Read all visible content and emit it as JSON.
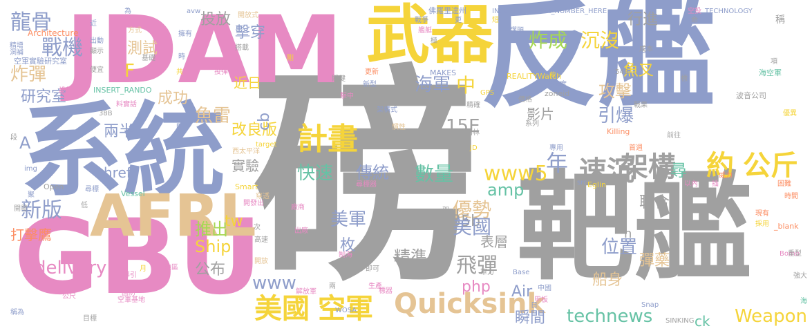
{
  "words": [
    {
      "text": "磅",
      "color": "#a0a0a0"
    },
    {
      "text": "反艦",
      "color": "#8e9dca"
    },
    {
      "text": "靶艦",
      "color": "#a0a0a0"
    },
    {
      "text": "系統",
      "color": "#8e9dca"
    },
    {
      "text": "JDAM",
      "color": "#e78ac3"
    },
    {
      "text": "GBU",
      "color": "#e78ac3"
    },
    {
      "text": "武器",
      "color": "#f5d43a"
    },
    {
      "text": "AFRL",
      "color": "#e5c494"
    },
    {
      "text": "Quicksink",
      "color": "#e5c494"
    },
    {
      "text": "美國",
      "color": "#f5d43a"
    },
    {
      "text": "空軍",
      "color": "#f5d43a"
    },
    {
      "text": "約",
      "color": "#f5d43a"
    },
    {
      "text": "公斤",
      "color": "#f5d43a"
    },
    {
      "text": "計畫",
      "color": "#f5d43a"
    },
    {
      "text": "架構",
      "color": "#a0a0a0"
    },
    {
      "text": "速沉",
      "color": "#a0a0a0"
    },
    {
      "text": "龍骨",
      "color": "#8e9dca"
    },
    {
      "text": "戰機",
      "color": "#8e9dca"
    },
    {
      "text": "炸彈",
      "color": "#e5c494"
    },
    {
      "text": "研究室",
      "color": "#8e9dca"
    },
    {
      "text": "兩半",
      "color": "#8e9dca"
    },
    {
      "text": "炸成",
      "color": "#a6d854"
    },
    {
      "text": "沉沒",
      "color": "#f5d43a"
    },
    {
      "text": "行進",
      "color": "#a0a0a0"
    },
    {
      "text": "擊穿",
      "color": "#8e9dca"
    },
    {
      "text": "投放",
      "color": "#a0a0a0"
    },
    {
      "text": "測試",
      "color": "#e5c494"
    },
    {
      "text": "近日",
      "color": "#f5d43a"
    },
    {
      "text": "成功",
      "color": "#e5c494"
    },
    {
      "text": "魚雷",
      "color": "#e5c494"
    },
    {
      "text": "魚叉",
      "color": "#f5d43a"
    },
    {
      "text": "攻擊",
      "color": "#e5c494"
    },
    {
      "text": "海軍",
      "color": "#8e9dca"
    },
    {
      "text": "中",
      "color": "#f5d43a"
    },
    {
      "text": "引爆",
      "color": "#8e9dca"
    },
    {
      "text": "影片",
      "color": "#a0a0a0"
    },
    {
      "text": "15E",
      "color": "#a0a0a0"
    },
    {
      "text": "改良版",
      "color": "#f5d43a"
    },
    {
      "text": "快速",
      "color": "#66c2a5"
    },
    {
      "text": "實驗",
      "color": "#a0a0a0"
    },
    {
      "text": "傳統",
      "color": "#8e9dca"
    },
    {
      "text": "數量",
      "color": "#66c2a5"
    },
    {
      "text": "年",
      "color": "#8e9dca"
    },
    {
      "text": "尋",
      "color": "#66c2a5"
    },
    {
      "text": "新版",
      "color": "#8e9dca"
    },
    {
      "text": "打擊鷹",
      "color": "#fc8d62"
    },
    {
      "text": "推出",
      "color": "#a6d854"
    },
    {
      "text": "Ship",
      "color": "#f5d43a"
    },
    {
      "text": "公布",
      "color": "#a0a0a0"
    },
    {
      "text": "delivery",
      "color": "#e78ac3"
    },
    {
      "text": "www",
      "color": "#8e9dca"
    },
    {
      "text": "www5",
      "color": "#f5d43a"
    },
    {
      "text": "amp",
      "color": "#66c2a5"
    },
    {
      "text": "優勢",
      "color": "#e5c494"
    },
    {
      "text": "美軍",
      "color": "#8e9dca"
    },
    {
      "text": "a4b3f35b",
      "color": "#a0a0a0"
    },
    {
      "text": "美國",
      "color": "#8e9dca"
    },
    {
      "text": "精準",
      "color": "#a0a0a0"
    },
    {
      "text": "飛彈",
      "color": "#a0a0a0"
    },
    {
      "text": "位置",
      "color": "#8e9dca"
    },
    {
      "text": "聯合",
      "color": "#a0a0a0"
    },
    {
      "text": "彈藥",
      "color": "#e5c494"
    },
    {
      "text": "船身",
      "color": "#e5c494"
    },
    {
      "text": "瞬間",
      "color": "#8e9dca"
    },
    {
      "text": "technews",
      "color": "#66c2a5"
    },
    {
      "text": "Weapon",
      "color": "#f5d43a"
    },
    {
      "text": "php",
      "color": "#e78ac3"
    },
    {
      "text": "Air",
      "color": "#8e9dca"
    },
    {
      "text": "表層",
      "color": "#a0a0a0"
    },
    {
      "text": "ck",
      "color": "#66c2a5"
    },
    {
      "text": "tw",
      "color": "#f5d43a"
    },
    {
      "text": "cb",
      "color": "#8e9dca"
    },
    {
      "text": "href",
      "color": "#8e9dca"
    },
    {
      "text": "A",
      "color": "#8e9dca"
    },
    {
      "text": "F",
      "color": "#f5d43a"
    },
    {
      "text": "n",
      "color": "#a0a0a0"
    },
    {
      "text": "枚",
      "color": "#8e9dca"
    },
    {
      "text": "Architecture",
      "color": "#fc8d62"
    },
    {
      "text": "空軍實驗研究室",
      "color": "#8e9dca"
    },
    {
      "text": "INSERT_RANDO",
      "color": "#66c2a5"
    },
    {
      "text": "INSERT_RANDOM_NUMBER_HERE",
      "color": "#8e9dca"
    },
    {
      "text": "TECHNOLOGY",
      "color": "#8e9dca"
    },
    {
      "text": "佛羅里達州",
      "color": "#8e9dca"
    },
    {
      "text": "REALITYWatch",
      "color": "#f5d43a"
    },
    {
      "text": "MAKES",
      "color": "#8e9dca"
    },
    {
      "text": "Force",
      "color": "#8e9dca"
    },
    {
      "text": "zoneid",
      "color": "#a0a0a0"
    },
    {
      "text": "波音公司",
      "color": "#a0a0a0"
    },
    {
      "text": "海空軍",
      "color": "#66c2a5"
    },
    {
      "text": "54B",
      "color": "#a0a0a0"
    },
    {
      "text": "Killing",
      "color": "#fc8d62"
    },
    {
      "text": "Eglin",
      "color": "#f5d43a"
    },
    {
      "text": "Systems",
      "color": "#a0a0a0"
    },
    {
      "text": "Vessel",
      "color": "#66c2a5"
    },
    {
      "text": "Smart",
      "color": "#f5d43a"
    },
    {
      "text": "Open",
      "color": "#a0a0a0"
    },
    {
      "text": "img",
      "color": "#8e9dca"
    },
    {
      "text": "target",
      "color": "#f5d43a"
    },
    {
      "text": "西太平洋",
      "color": "#e5c494"
    },
    {
      "text": "SINKING",
      "color": "#a0a0a0"
    },
    {
      "text": "Snap",
      "color": "#8e9dca"
    },
    {
      "text": "WOSA",
      "color": "#8e9dca"
    },
    {
      "text": "Bomb",
      "color": "#e78ac3"
    },
    {
      "text": "_blank",
      "color": "#fc8d62"
    },
    {
      "text": "GPS",
      "color": "#f5d43a"
    },
    {
      "text": "avw",
      "color": "#8e9dca"
    },
    {
      "text": "38B",
      "color": "#a0a0a0"
    },
    {
      "text": "JD",
      "color": "#f5d43a"
    },
    {
      "text": "src",
      "color": "#8e9dca"
    },
    {
      "text": "Base",
      "color": "#8e9dca"
    },
    {
      "text": "開放式",
      "color": "#e5c494"
    },
    {
      "text": "方式",
      "color": "#e5c494"
    },
    {
      "text": "出動",
      "color": "#8e9dca"
    },
    {
      "text": "顯示",
      "color": "#a0a0a0"
    },
    {
      "text": "擁有",
      "color": "#8e9dca"
    },
    {
      "text": "基礎",
      "color": "#a0a0a0"
    },
    {
      "text": "時",
      "color": "#8e9dca"
    },
    {
      "text": "搭載",
      "color": "#a0a0a0"
    },
    {
      "text": "剛",
      "color": "#f5d43a"
    },
    {
      "text": "艦艇",
      "color": "#e78ac3"
    },
    {
      "text": "戰爭",
      "color": "#8e9dca"
    },
    {
      "text": "極",
      "color": "#a0a0a0"
    },
    {
      "text": "更",
      "color": "#8e9dca"
    },
    {
      "text": "短",
      "color": "#f5d43a"
    },
    {
      "text": "空投",
      "color": "#e78ac3"
    },
    {
      "text": "命",
      "color": "#a0a0a0"
    },
    {
      "text": "稱",
      "color": "#a0a0a0"
    },
    {
      "text": "成本",
      "color": "#a0a0a0"
    },
    {
      "text": "彈頭",
      "color": "#8e9dca"
    },
    {
      "text": "投彈",
      "color": "#e78ac3"
    },
    {
      "text": "關鍵",
      "color": "#a0a0a0"
    },
    {
      "text": "更新",
      "color": "#fc8d62"
    },
    {
      "text": "新型",
      "color": "#8e9dca"
    },
    {
      "text": "擊中",
      "color": "#e78ac3"
    },
    {
      "text": "首",
      "color": "#a0a0a0"
    },
    {
      "text": "架構式",
      "color": "#8e9dca"
    },
    {
      "text": "精確度",
      "color": "#8e9dca"
    },
    {
      "text": "精確",
      "color": "#a0a0a0"
    },
    {
      "text": "價格",
      "color": "#a0a0a0"
    },
    {
      "text": "戰果",
      "color": "#a0a0a0"
    },
    {
      "text": "優異",
      "color": "#f5d43a"
    },
    {
      "text": "慣性",
      "color": "#e5c494"
    },
    {
      "text": "埃格林",
      "color": "#a0a0a0"
    },
    {
      "text": "專用",
      "color": "#8e9dca"
    },
    {
      "text": "首週",
      "color": "#fc8d62"
    },
    {
      "text": "前往",
      "color": "#a0a0a0"
    },
    {
      "text": "尋標器",
      "color": "#e78ac3"
    },
    {
      "text": "以內",
      "color": "#e78ac3"
    },
    {
      "text": "插",
      "color": "#e78ac3"
    },
    {
      "text": "威力",
      "color": "#fc8d62"
    },
    {
      "text": "困難",
      "color": "#fc8d62"
    },
    {
      "text": "時間",
      "color": "#fc8d62"
    },
    {
      "text": "現有",
      "color": "#fc8d62"
    },
    {
      "text": "採用",
      "color": "#f5d43a"
    },
    {
      "text": "重型",
      "color": "#a0a0a0"
    },
    {
      "text": "強大",
      "color": "#a0a0a0"
    },
    {
      "text": "海",
      "color": "#66c2a5"
    },
    {
      "text": "廠商",
      "color": "#e78ac3"
    },
    {
      "text": "開發出",
      "color": "#e78ac3"
    },
    {
      "text": "出廠",
      "color": "#e78ac3"
    },
    {
      "text": "高速",
      "color": "#a0a0a0"
    },
    {
      "text": "制海",
      "color": "#e78ac3"
    },
    {
      "text": "即可",
      "color": "#a0a0a0"
    },
    {
      "text": "生產",
      "color": "#e78ac3"
    },
    {
      "text": "標器",
      "color": "#e78ac3"
    },
    {
      "text": "解放軍",
      "color": "#e78ac3"
    },
    {
      "text": "國防",
      "color": "#e78ac3"
    },
    {
      "text": "空軍基地",
      "color": "#e78ac3"
    },
    {
      "text": "導引",
      "color": "#e78ac3"
    },
    {
      "text": "料實話",
      "color": "#e78ac3"
    },
    {
      "text": "開發",
      "color": "#a0a0a0"
    },
    {
      "text": "公尺",
      "color": "#e78ac3"
    },
    {
      "text": "稱為",
      "color": "#8e9dca"
    },
    {
      "text": "目標",
      "color": "#a0a0a0"
    },
    {
      "text": "地區",
      "color": "#e78ac3"
    },
    {
      "text": "甲板",
      "color": "#e78ac3"
    },
    {
      "text": "中國",
      "color": "#8e9dca"
    },
    {
      "text": "軍力",
      "color": "#a0a0a0"
    },
    {
      "text": "便宜",
      "color": "#a0a0a0"
    },
    {
      "text": "設計",
      "color": "#e78ac3"
    },
    {
      "text": "精增",
      "color": "#8e9dca"
    },
    {
      "text": "洞補",
      "color": "#8e9dca"
    },
    {
      "text": "系列",
      "color": "#a0a0a0"
    },
    {
      "text": "穿透",
      "color": "#e5c494"
    },
    {
      "text": "聚",
      "color": "#8e9dca"
    },
    {
      "text": "尋標",
      "color": "#8e9dca"
    },
    {
      "text": "開放",
      "color": "#e5c494"
    },
    {
      "text": "次",
      "color": "#a0a0a0"
    },
    {
      "text": "低",
      "color": "#a0a0a0"
    },
    {
      "text": "月",
      "color": "#f5d43a"
    },
    {
      "text": "段",
      "color": "#a0a0a0"
    },
    {
      "text": "近",
      "color": "#8e9dca"
    },
    {
      "text": "為",
      "color": "#8e9dca"
    },
    {
      "text": "共",
      "color": "#f5d43a"
    },
    {
      "text": "款",
      "color": "#f5d43a"
    },
    {
      "text": "項",
      "color": "#a0a0a0"
    },
    {
      "text": "標",
      "color": "#a0a0a0"
    },
    {
      "text": "架",
      "color": "#a0a0a0"
    },
    {
      "text": "間",
      "color": "#8e9dca"
    },
    {
      "text": "日",
      "color": "#8e9dca"
    },
    {
      "text": "兩",
      "color": "#a0a0a0"
    }
  ]
}
